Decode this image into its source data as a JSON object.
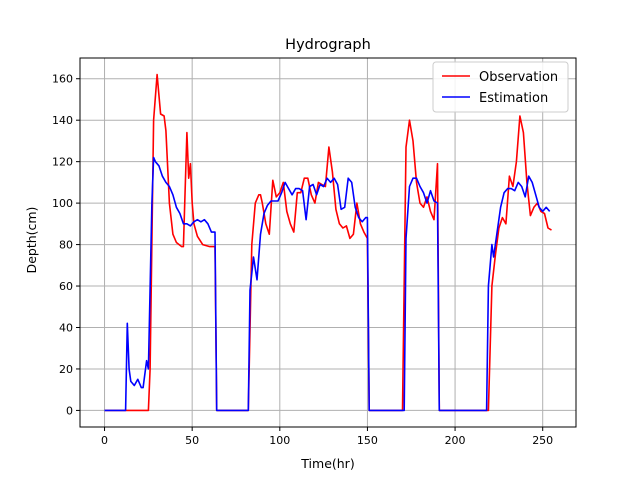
{
  "chart_data": {
    "type": "line",
    "title": "Hydrograph",
    "xlabel": "Time(hr)",
    "ylabel": "Depth(cm)",
    "xlim": [
      -14,
      269
    ],
    "ylim": [
      -8,
      170
    ],
    "xticks": [
      0,
      50,
      100,
      150,
      200,
      250
    ],
    "yticks": [
      0,
      20,
      40,
      60,
      80,
      100,
      120,
      140,
      160
    ],
    "grid": true,
    "legend_position": "upper-right",
    "series": [
      {
        "name": "Observation",
        "color": "#ff0000",
        "points": [
          [
            0,
            0
          ],
          [
            13,
            0
          ],
          [
            25,
            0
          ],
          [
            26,
            20
          ],
          [
            28,
            140
          ],
          [
            30,
            162
          ],
          [
            32,
            143
          ],
          [
            34,
            142
          ],
          [
            35,
            135
          ],
          [
            37,
            100
          ],
          [
            39,
            85
          ],
          [
            41,
            81
          ],
          [
            44,
            79
          ],
          [
            45,
            79
          ],
          [
            47,
            134
          ],
          [
            48,
            112
          ],
          [
            49,
            119
          ],
          [
            50,
            100
          ],
          [
            51,
            90
          ],
          [
            53,
            84
          ],
          [
            56,
            80
          ],
          [
            60,
            79
          ],
          [
            63,
            79
          ],
          [
            64,
            0
          ],
          [
            70,
            0
          ],
          [
            80,
            0
          ],
          [
            82,
            0
          ],
          [
            84,
            80
          ],
          [
            86,
            100
          ],
          [
            88,
            104
          ],
          [
            89,
            104
          ],
          [
            90,
            100
          ],
          [
            92,
            90
          ],
          [
            94,
            85
          ],
          [
            96,
            111
          ],
          [
            98,
            103
          ],
          [
            100,
            105
          ],
          [
            102,
            110
          ],
          [
            104,
            96
          ],
          [
            106,
            90
          ],
          [
            108,
            86
          ],
          [
            110,
            105
          ],
          [
            112,
            105
          ],
          [
            114,
            112
          ],
          [
            116,
            112
          ],
          [
            118,
            104
          ],
          [
            120,
            100
          ],
          [
            122,
            110
          ],
          [
            124,
            109
          ],
          [
            126,
            108
          ],
          [
            128,
            127
          ],
          [
            130,
            115
          ],
          [
            132,
            97
          ],
          [
            134,
            90
          ],
          [
            136,
            88
          ],
          [
            138,
            89
          ],
          [
            140,
            83
          ],
          [
            142,
            85
          ],
          [
            144,
            100
          ],
          [
            146,
            90
          ],
          [
            148,
            86
          ],
          [
            150,
            83
          ],
          [
            151,
            0
          ],
          [
            160,
            0
          ],
          [
            170,
            0
          ],
          [
            172,
            127
          ],
          [
            174,
            140
          ],
          [
            176,
            130
          ],
          [
            178,
            110
          ],
          [
            180,
            100
          ],
          [
            182,
            98
          ],
          [
            184,
            103
          ],
          [
            186,
            96
          ],
          [
            188,
            92
          ],
          [
            190,
            119
          ],
          [
            191,
            0
          ],
          [
            200,
            0
          ],
          [
            210,
            0
          ],
          [
            219,
            0
          ],
          [
            221,
            60
          ],
          [
            223,
            75
          ],
          [
            225,
            88
          ],
          [
            227,
            93
          ],
          [
            229,
            90
          ],
          [
            231,
            113
          ],
          [
            233,
            108
          ],
          [
            235,
            120
          ],
          [
            237,
            142
          ],
          [
            239,
            134
          ],
          [
            241,
            110
          ],
          [
            243,
            94
          ],
          [
            245,
            98
          ],
          [
            247,
            100
          ],
          [
            249,
            96
          ],
          [
            251,
            95
          ],
          [
            253,
            88
          ],
          [
            255,
            87
          ]
        ]
      },
      {
        "name": "Estimation",
        "color": "#0000ff",
        "points": [
          [
            0,
            0
          ],
          [
            12,
            0
          ],
          [
            13,
            42
          ],
          [
            14,
            20
          ],
          [
            15,
            14
          ],
          [
            17,
            12
          ],
          [
            19,
            15
          ],
          [
            21,
            11
          ],
          [
            22,
            11
          ],
          [
            24,
            24
          ],
          [
            25,
            20
          ],
          [
            27,
            100
          ],
          [
            28,
            122
          ],
          [
            29,
            120
          ],
          [
            31,
            118
          ],
          [
            33,
            113
          ],
          [
            35,
            110
          ],
          [
            37,
            108
          ],
          [
            39,
            104
          ],
          [
            41,
            98
          ],
          [
            43,
            95
          ],
          [
            45,
            90
          ],
          [
            47,
            90
          ],
          [
            49,
            89
          ],
          [
            51,
            91
          ],
          [
            53,
            92
          ],
          [
            55,
            91
          ],
          [
            57,
            92
          ],
          [
            59,
            90
          ],
          [
            61,
            86
          ],
          [
            63,
            86
          ],
          [
            64,
            0
          ],
          [
            70,
            0
          ],
          [
            82,
            0
          ],
          [
            83,
            58
          ],
          [
            85,
            74
          ],
          [
            87,
            63
          ],
          [
            89,
            85
          ],
          [
            91,
            95
          ],
          [
            93,
            99
          ],
          [
            95,
            101
          ],
          [
            97,
            101
          ],
          [
            99,
            101
          ],
          [
            101,
            105
          ],
          [
            103,
            110
          ],
          [
            105,
            107
          ],
          [
            107,
            104
          ],
          [
            109,
            107
          ],
          [
            111,
            107
          ],
          [
            113,
            106
          ],
          [
            115,
            92
          ],
          [
            117,
            108
          ],
          [
            119,
            109
          ],
          [
            121,
            104
          ],
          [
            123,
            109
          ],
          [
            125,
            108
          ],
          [
            127,
            112
          ],
          [
            129,
            110
          ],
          [
            131,
            112
          ],
          [
            133,
            109
          ],
          [
            135,
            97
          ],
          [
            137,
            98
          ],
          [
            139,
            112
          ],
          [
            141,
            110
          ],
          [
            143,
            98
          ],
          [
            145,
            93
          ],
          [
            147,
            91
          ],
          [
            149,
            93
          ],
          [
            150,
            93
          ],
          [
            151,
            0
          ],
          [
            160,
            0
          ],
          [
            171,
            0
          ],
          [
            172,
            83
          ],
          [
            174,
            108
          ],
          [
            176,
            112
          ],
          [
            178,
            112
          ],
          [
            180,
            108
          ],
          [
            182,
            105
          ],
          [
            184,
            100
          ],
          [
            186,
            106
          ],
          [
            188,
            101
          ],
          [
            190,
            100
          ],
          [
            191,
            0
          ],
          [
            200,
            0
          ],
          [
            218,
            0
          ],
          [
            219,
            60
          ],
          [
            221,
            80
          ],
          [
            222,
            74
          ],
          [
            224,
            86
          ],
          [
            226,
            98
          ],
          [
            228,
            105
          ],
          [
            230,
            107
          ],
          [
            232,
            107
          ],
          [
            234,
            106
          ],
          [
            236,
            110
          ],
          [
            238,
            108
          ],
          [
            240,
            103
          ],
          [
            242,
            113
          ],
          [
            244,
            110
          ],
          [
            246,
            104
          ],
          [
            248,
            98
          ],
          [
            250,
            96
          ],
          [
            252,
            98
          ],
          [
            254,
            96
          ]
        ]
      }
    ]
  }
}
